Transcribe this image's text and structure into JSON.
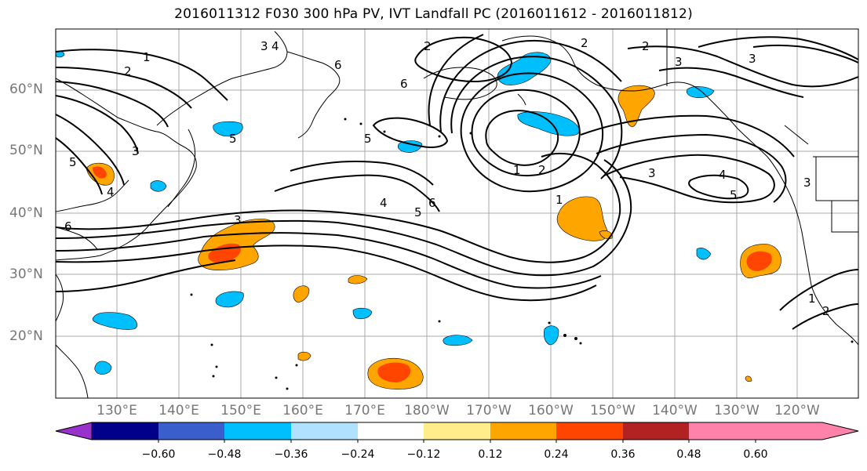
{
  "title": "2016011312 F030 300 hPa PV, IVT Landfall PC (2016011612 - 2016011812)",
  "lat_labels": [
    "60°N",
    "50°N",
    "40°N",
    "30°N",
    "20°N"
  ],
  "lon_labels": [
    "130°E",
    "140°E",
    "150°E",
    "160°E",
    "170°E",
    "180°W",
    "170°W",
    "160°W",
    "150°W",
    "140°W",
    "130°W",
    "120°W"
  ],
  "colorbar": {
    "ticks": [
      "−0.60",
      "−0.48",
      "−0.36",
      "−0.24",
      "−0.12",
      "0.12",
      "0.24",
      "0.36",
      "0.48",
      "0.60"
    ],
    "colors": [
      "#9932cc",
      "#00008b",
      "#3a5fcd",
      "#00bfff",
      "#b0e2ff",
      "#ffffff",
      "#ffec8b",
      "#ffa500",
      "#ff4500",
      "#b22222",
      "#ff82ab"
    ]
  },
  "contour_labels": [
    "1",
    "2",
    "3",
    "4",
    "5",
    "6",
    "3",
    "4",
    "6",
    "6",
    "2",
    "3",
    "3",
    "5",
    "3",
    "5",
    "2",
    "4",
    "5",
    "6",
    "1",
    "2",
    "1",
    "2",
    "3",
    "4",
    "5",
    "3",
    "1",
    "2"
  ],
  "colors": {
    "land": "#000000",
    "grid": "#aaaaaa",
    "contour": "#000000"
  }
}
